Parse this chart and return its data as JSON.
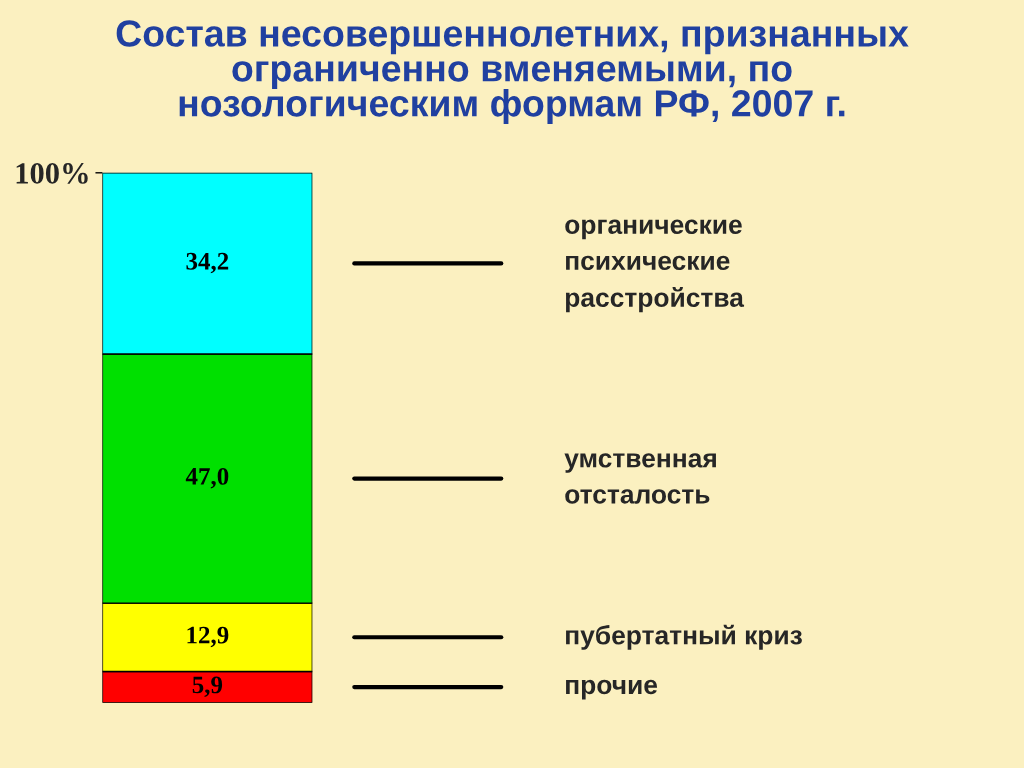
{
  "chart_data": {
    "type": "bar",
    "stacked": true,
    "title": "Состав несовершеннолетних, признанных\nограниченно вменяемыми, по\nнозологическим формам РФ, 2007 г.",
    "categories": [
      null
    ],
    "ylim": [
      0,
      100
    ],
    "yticks": [
      {
        "value": 100,
        "label": "100%"
      }
    ],
    "series": [
      {
        "name": "прочие",
        "color": "#ff0000",
        "values": [
          5.9
        ],
        "value_labels": [
          "5,9"
        ]
      },
      {
        "name": "пубертатный криз",
        "color": "#ffff00",
        "values": [
          12.9
        ],
        "value_labels": [
          "12,9"
        ]
      },
      {
        "name": "умственная\nотсталость",
        "color": "#00e000",
        "values": [
          47.0
        ],
        "value_labels": [
          "47,0"
        ]
      },
      {
        "name": "органические\nпсихические\nрасстройства",
        "color": "#00ffff",
        "values": [
          34.2
        ],
        "value_labels": [
          "34,2"
        ]
      }
    ]
  }
}
